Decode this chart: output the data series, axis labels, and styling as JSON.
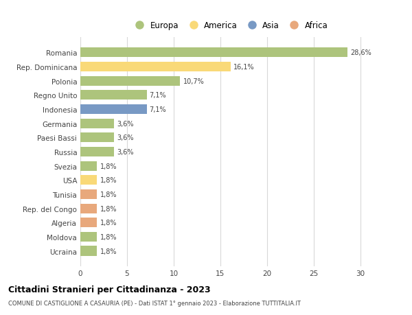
{
  "countries": [
    "Romania",
    "Rep. Dominicana",
    "Polonia",
    "Regno Unito",
    "Indonesia",
    "Germania",
    "Paesi Bassi",
    "Russia",
    "Svezia",
    "USA",
    "Tunisia",
    "Rep. del Congo",
    "Algeria",
    "Moldova",
    "Ucraina"
  ],
  "values": [
    28.6,
    16.1,
    10.7,
    7.1,
    7.1,
    3.6,
    3.6,
    3.6,
    1.8,
    1.8,
    1.8,
    1.8,
    1.8,
    1.8,
    1.8
  ],
  "labels": [
    "28,6%",
    "16,1%",
    "10,7%",
    "7,1%",
    "7,1%",
    "3,6%",
    "3,6%",
    "3,6%",
    "1,8%",
    "1,8%",
    "1,8%",
    "1,8%",
    "1,8%",
    "1,8%",
    "1,8%"
  ],
  "colors": [
    "#adc47c",
    "#f9d978",
    "#adc47c",
    "#adc47c",
    "#7899c4",
    "#adc47c",
    "#adc47c",
    "#adc47c",
    "#adc47c",
    "#f9d978",
    "#e8a87c",
    "#e8a87c",
    "#e8a87c",
    "#adc47c",
    "#adc47c"
  ],
  "legend_labels": [
    "Europa",
    "America",
    "Asia",
    "Africa"
  ],
  "legend_colors": [
    "#adc47c",
    "#f9d978",
    "#7899c4",
    "#e8a87c"
  ],
  "title": "Cittadini Stranieri per Cittadinanza - 2023",
  "subtitle": "COMUNE DI CASTIGLIONE A CASAURIA (PE) - Dati ISTAT 1° gennaio 2023 - Elaborazione TUTTITALIA.IT",
  "xlim": [
    0,
    32
  ],
  "xticks": [
    0,
    5,
    10,
    15,
    20,
    25,
    30
  ],
  "background_color": "#ffffff",
  "grid_color": "#d8d8d8",
  "bar_height": 0.68
}
